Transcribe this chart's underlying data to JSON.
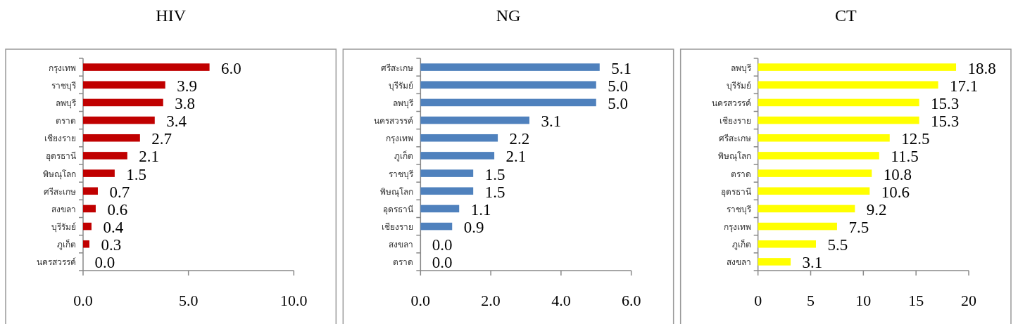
{
  "chart_data": [
    {
      "type": "bar",
      "orientation": "horizontal",
      "title": "HIV",
      "color": "#c00000",
      "categories": [
        "กรุงเทพ",
        "ราชบุรี",
        "ลพบุรี",
        "ตราด",
        "เชียงราย",
        "อุดรธานี",
        "พิษณุโลก",
        "ศรีสะเกษ",
        "สงขลา",
        "บุรีรัมย์",
        "ภูเก็ต",
        "นครสวรรค์"
      ],
      "values": [
        6.0,
        3.9,
        3.8,
        3.4,
        2.7,
        2.1,
        1.5,
        0.7,
        0.6,
        0.4,
        0.3,
        0.0
      ],
      "value_labels": [
        "6.0",
        "3.9",
        "3.8",
        "3.4",
        "2.7",
        "2.1",
        "1.5",
        "0.7",
        "0.6",
        "0.4",
        "0.3",
        "0.0"
      ],
      "xlim": [
        0,
        10
      ],
      "xticks": [
        {
          "value": 0,
          "label": "0.0"
        },
        {
          "value": 5,
          "label": "5.0"
        },
        {
          "value": 10,
          "label": "10.0"
        }
      ]
    },
    {
      "type": "bar",
      "orientation": "horizontal",
      "title": "NG",
      "color": "#4f81bd",
      "categories": [
        "ศรีสะเกษ",
        "บุรีรัมย์",
        "ลพบุรี",
        "นครสวรรค์",
        "กรุงเทพ",
        "ภูเก็ต",
        "ราชบุรี",
        "พิษณุโลก",
        "อุดรธานี",
        "เชียงราย",
        "สงขลา",
        "ตราด"
      ],
      "values": [
        5.1,
        5.0,
        5.0,
        3.1,
        2.2,
        2.1,
        1.5,
        1.5,
        1.1,
        0.9,
        0.0,
        0.0
      ],
      "value_labels": [
        "5.1",
        "5.0",
        "5.0",
        "3.1",
        "2.2",
        "2.1",
        "1.5",
        "1.5",
        "1.1",
        "0.9",
        "0.0",
        "0.0"
      ],
      "xlim": [
        0,
        6
      ],
      "xticks": [
        {
          "value": 0,
          "label": "0.0"
        },
        {
          "value": 2,
          "label": "2.0"
        },
        {
          "value": 4,
          "label": "4.0"
        },
        {
          "value": 6,
          "label": "6.0"
        }
      ]
    },
    {
      "type": "bar",
      "orientation": "horizontal",
      "title": "CT",
      "color": "#ffff00",
      "categories": [
        "ลพบุรี",
        "บุรีรัมย์",
        "นครสวรรค์",
        "เชียงราย",
        "ศรีสะเกษ",
        "พิษณุโลก",
        "ตราด",
        "อุดรธานี",
        "ราชบุรี",
        "กรุงเทพ",
        "ภูเก็ต",
        "สงขลา"
      ],
      "values": [
        18.8,
        17.1,
        15.3,
        15.3,
        12.5,
        11.5,
        10.8,
        10.6,
        9.2,
        7.5,
        5.5,
        3.1
      ],
      "value_labels": [
        "18.8",
        "17.1",
        "15.3",
        "15.3",
        "12.5",
        "11.5",
        "10.8",
        "10.6",
        "9.2",
        "7.5",
        "5.5",
        "3.1"
      ],
      "xlim": [
        0,
        20
      ],
      "xticks": [
        0,
        5,
        10,
        15,
        20
      ]
    }
  ]
}
